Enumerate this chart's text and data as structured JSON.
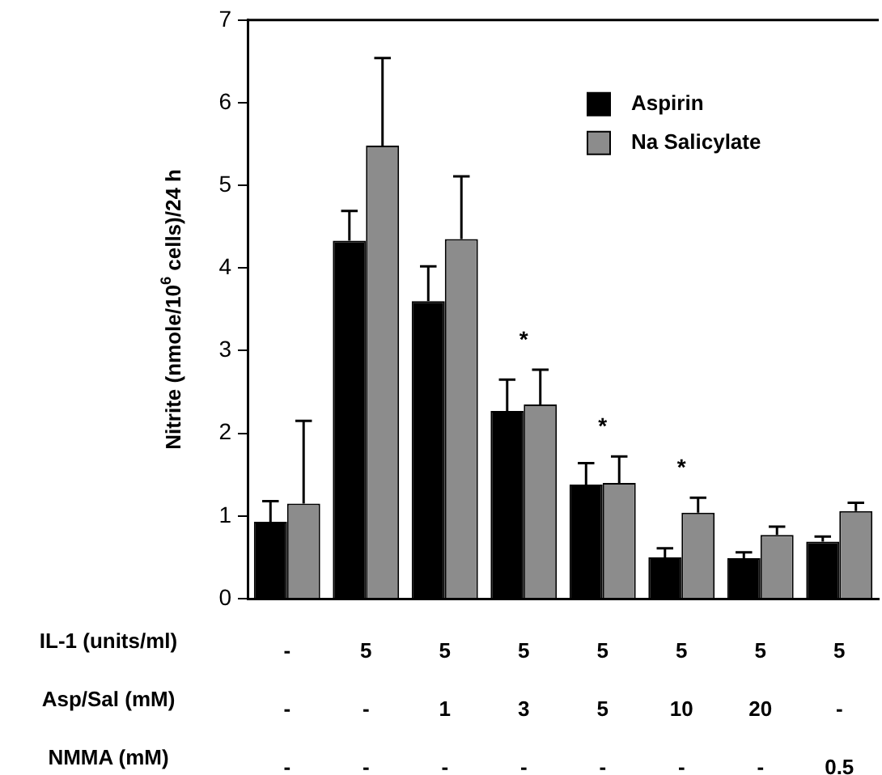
{
  "chart_data": {
    "type": "bar",
    "ylabel": "Nitrite (nmole/10$^{6}$ cells)/24 h",
    "xlabel": "IL-1 (units/ml)\nAsp/Sal (mM)\nNMMA (mM)",
    "categories": [
      "-\n-\n-",
      "5\n-\n-",
      "5\n1\n-",
      "5\n3\n-",
      "5\n5\n-",
      "5\n10\n-",
      "5\n20\n-",
      "5\n-\n0.5"
    ],
    "series": [
      {
        "name": "Aspirin",
        "color": "#000000",
        "values": [
          0.93,
          4.33,
          3.6,
          2.27,
          1.38,
          0.5,
          0.49,
          0.69
        ],
        "errors": [
          [
            0.93,
            1.18
          ],
          [
            4.33,
            4.69
          ],
          [
            3.6,
            4.02
          ],
          [
            2.27,
            2.65
          ],
          [
            1.38,
            1.64
          ],
          [
            0.5,
            0.61
          ],
          [
            0.49,
            0.56
          ],
          [
            0.69,
            0.75
          ]
        ]
      },
      {
        "name": "Na Salicylate",
        "color": "#8c8c8c",
        "values": [
          1.15,
          5.48,
          4.35,
          2.35,
          1.4,
          1.04,
          0.77,
          1.06
        ],
        "errors": [
          [
            1.15,
            2.15
          ],
          [
            5.48,
            6.54
          ],
          [
            4.35,
            5.11
          ],
          [
            2.35,
            2.77
          ],
          [
            1.4,
            1.72
          ],
          [
            1.04,
            1.22
          ],
          [
            0.77,
            0.87
          ],
          [
            1.06,
            1.16
          ]
        ]
      }
    ],
    "ylim": [
      0,
      7
    ],
    "yticks": [
      0,
      1,
      2,
      3,
      4,
      5,
      6,
      7
    ],
    "annotations": [
      "*",
      "*",
      "*"
    ],
    "legend": "top right",
    "grid": false
  }
}
